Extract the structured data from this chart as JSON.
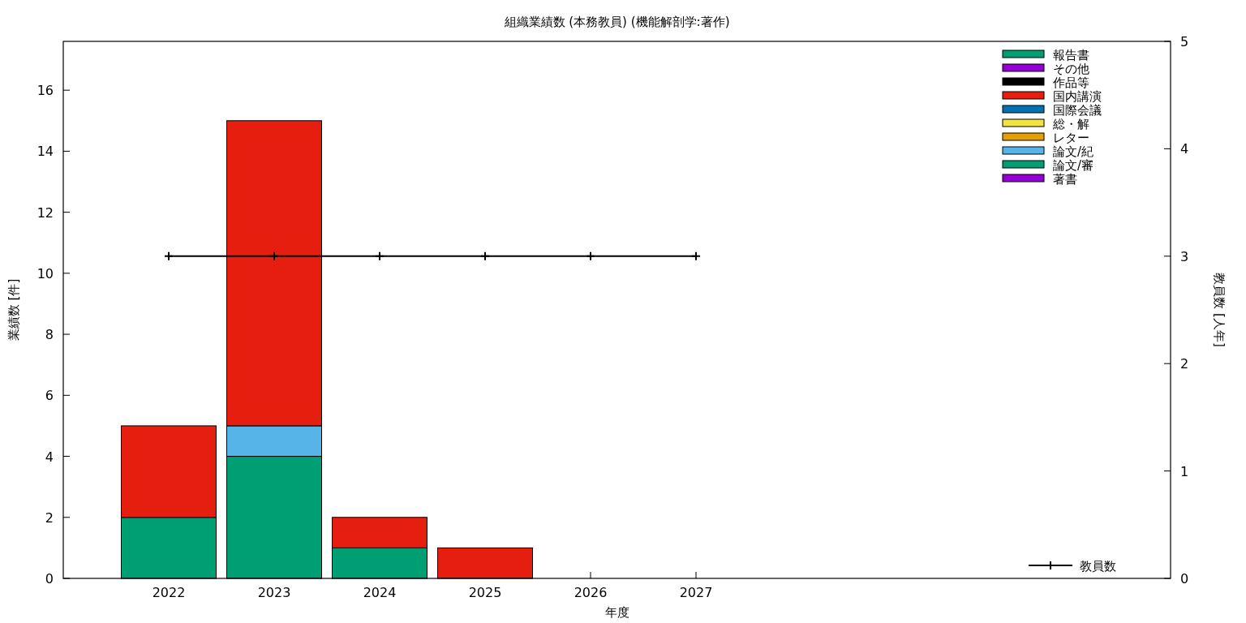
{
  "chart_data": {
    "type": "bar",
    "stacked": true,
    "title": "組織業績数 (本務教員) (機能解剖学:著作)",
    "xlabel": "年度",
    "ylabel": "業績数 [件]",
    "y2label": "教員数 [人年]",
    "x": [
      2022,
      2023,
      2024,
      2025,
      2026,
      2027
    ],
    "xlim": [
      2021,
      2031.5
    ],
    "xticks": [
      2022,
      2023,
      2024,
      2025,
      2026,
      2027
    ],
    "ylim": [
      0,
      17.6
    ],
    "yticks": [
      0,
      2,
      4,
      6,
      8,
      10,
      12,
      14,
      16
    ],
    "y2lim": [
      0,
      5
    ],
    "y2ticks": [
      0,
      1,
      2,
      3,
      4,
      5
    ],
    "grid": false,
    "legend": "right",
    "series": [
      {
        "name": "著書",
        "color": "#9400d3",
        "values": [
          0,
          0,
          0,
          0,
          0,
          0
        ]
      },
      {
        "name": "論文/審",
        "color": "#009e73",
        "values": [
          2,
          4,
          1,
          0,
          0,
          0
        ]
      },
      {
        "name": "論文/紀",
        "color": "#56b4e9",
        "values": [
          0,
          1,
          0,
          0,
          0,
          0
        ]
      },
      {
        "name": "レター",
        "color": "#e69f00",
        "values": [
          0,
          0,
          0,
          0,
          0,
          0
        ]
      },
      {
        "name": "総・解",
        "color": "#f0e442",
        "values": [
          0,
          0,
          0,
          0,
          0,
          0
        ]
      },
      {
        "name": "国際会議",
        "color": "#0072b2",
        "values": [
          0,
          0,
          0,
          0,
          0,
          0
        ]
      },
      {
        "name": "国内講演",
        "color": "#e51e10",
        "values": [
          3,
          10,
          1,
          1,
          0,
          0
        ]
      },
      {
        "name": "作品等",
        "color": "#000000",
        "values": [
          0,
          0,
          0,
          0,
          0,
          0
        ]
      },
      {
        "name": "その他",
        "color": "#9400d3",
        "values": [
          0,
          0,
          0,
          0,
          0,
          0
        ]
      },
      {
        "name": "報告書",
        "color": "#009e73",
        "values": [
          0,
          0,
          0,
          0,
          0,
          0
        ]
      },
      {
        "name": "教員数",
        "type": "line",
        "axis": "y2",
        "color": "#000000",
        "marker": "cross",
        "line_style": "solid",
        "values": [
          3,
          3,
          3,
          3,
          3,
          3
        ]
      }
    ]
  }
}
